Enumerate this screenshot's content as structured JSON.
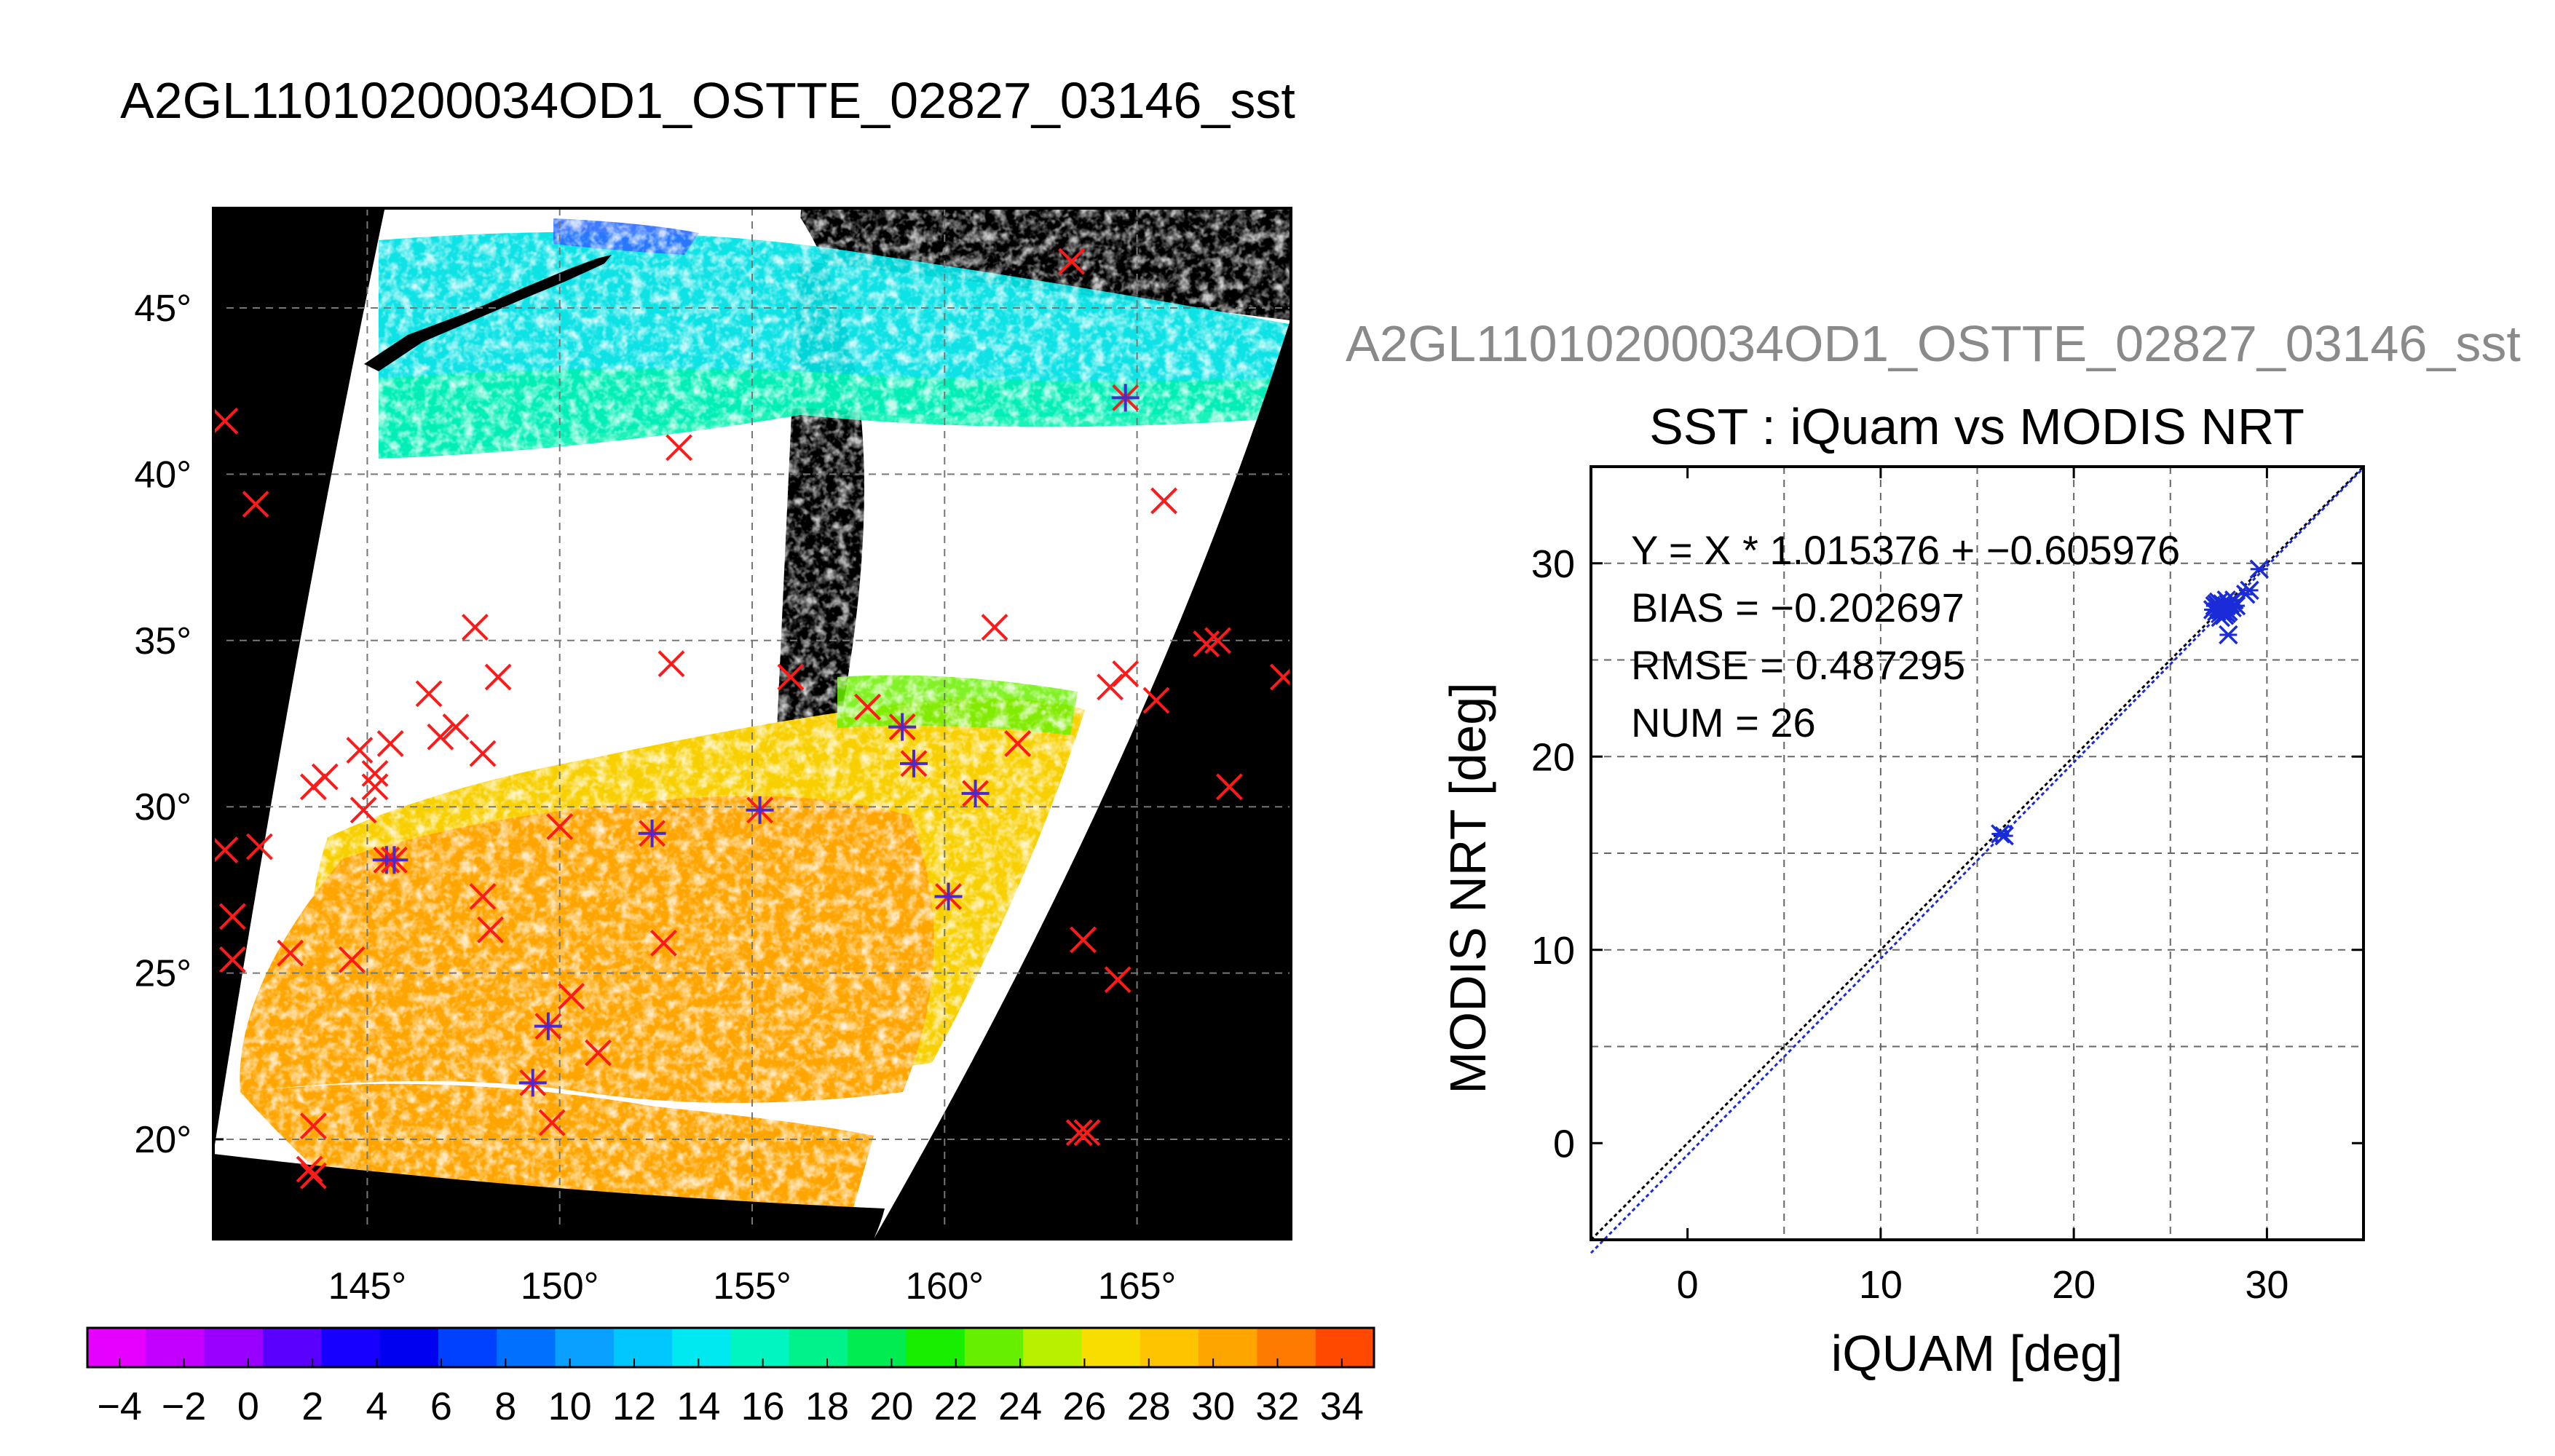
{
  "page": {
    "title": "A2GL11010200034OD1_OSTTE_02827_03146_sst",
    "subtitle": "A2GL11010200034OD1_OSTTE_02827_03146_sst"
  },
  "chart_data": [
    {
      "type": "map",
      "lon_range": [
        141,
        169
      ],
      "lat_range": [
        17,
        48
      ],
      "x_ticks": [
        145,
        150,
        155,
        160,
        165
      ],
      "x_tick_labels": [
        "145°",
        "150°",
        "155°",
        "160°",
        "165°"
      ],
      "y_ticks": [
        20,
        25,
        30,
        35,
        40,
        45
      ],
      "y_tick_labels": [
        "20°",
        "25°",
        "30°",
        "35°",
        "40°",
        "45°"
      ],
      "grid": true,
      "background_color": "#000000",
      "colorbar": {
        "range": [
          -5,
          35
        ],
        "step": 2,
        "tick_labels": [
          "−4",
          "−2",
          "0",
          "2",
          "4",
          "6",
          "8",
          "10",
          "12",
          "14",
          "16",
          "18",
          "20",
          "22",
          "24",
          "26",
          "28",
          "30",
          "32",
          "34"
        ],
        "colors": [
          "#e600ff",
          "#c300ff",
          "#9a00ff",
          "#5a00ff",
          "#1700ff",
          "#0000f0",
          "#0040ff",
          "#0070ff",
          "#0aa0ff",
          "#00c8ff",
          "#00e8f0",
          "#00f5c0",
          "#00f28a",
          "#00ec50",
          "#18ef00",
          "#66f000",
          "#b8f000",
          "#f8dd00",
          "#ffc400",
          "#ffa500",
          "#ff7a00",
          "#ff4800"
        ]
      },
      "markers": {
        "iquam_only": [
          [
            141.3,
            41.6
          ],
          [
            142.1,
            39.1
          ],
          [
            146.6,
            33.4
          ],
          [
            147.3,
            32.4
          ],
          [
            146.9,
            32.1
          ],
          [
            148.0,
            31.6
          ],
          [
            145.6,
            31.9
          ],
          [
            144.8,
            31.7
          ],
          [
            145.2,
            31.0
          ],
          [
            143.9,
            30.9
          ],
          [
            143.6,
            30.6
          ],
          [
            145.2,
            30.6
          ],
          [
            144.9,
            29.9
          ],
          [
            142.2,
            28.8
          ],
          [
            141.3,
            28.7
          ],
          [
            141.5,
            26.7
          ],
          [
            141.5,
            25.4
          ],
          [
            143.0,
            25.6
          ],
          [
            144.6,
            25.4
          ],
          [
            148.0,
            27.3
          ],
          [
            148.2,
            26.3
          ],
          [
            147.8,
            35.4
          ],
          [
            148.4,
            33.9
          ],
          [
            150.0,
            29.4
          ],
          [
            150.3,
            24.3
          ],
          [
            151.0,
            22.6
          ],
          [
            149.8,
            20.5
          ],
          [
            143.6,
            20.4
          ],
          [
            143.5,
            19.1
          ],
          [
            143.6,
            18.9
          ],
          [
            152.7,
            25.9
          ],
          [
            152.9,
            34.3
          ],
          [
            153.1,
            40.8
          ],
          [
            156.0,
            33.9
          ],
          [
            158.0,
            33.0
          ],
          [
            161.3,
            35.4
          ],
          [
            161.9,
            31.9
          ],
          [
            165.7,
            39.2
          ],
          [
            163.3,
            46.4
          ],
          [
            164.3,
            33.6
          ],
          [
            164.7,
            34.0
          ],
          [
            165.5,
            33.2
          ],
          [
            166.8,
            34.9
          ],
          [
            167.1,
            35.0
          ],
          [
            167.4,
            30.6
          ],
          [
            168.8,
            33.9
          ],
          [
            163.6,
            26.0
          ],
          [
            164.5,
            24.8
          ],
          [
            163.5,
            20.2
          ],
          [
            163.7,
            20.2
          ]
        ],
        "matched": [
          [
            164.7,
            42.3
          ],
          [
            158.9,
            32.4
          ],
          [
            159.2,
            31.3
          ],
          [
            160.8,
            30.4
          ],
          [
            155.2,
            29.9
          ],
          [
            152.4,
            29.2
          ],
          [
            145.5,
            28.4
          ],
          [
            145.7,
            28.4
          ],
          [
            160.1,
            27.3
          ],
          [
            149.7,
            23.4
          ],
          [
            149.3,
            21.7
          ]
        ]
      }
    },
    {
      "type": "scatter",
      "title": "SST : iQuam vs MODIS NRT",
      "xlabel": "iQUAM [deg]",
      "ylabel": "MODIS NRT [deg]",
      "xlim": [
        -5,
        35
      ],
      "ylim": [
        -5,
        35
      ],
      "x_ticks": [
        0,
        10,
        20,
        30
      ],
      "x_tick_labels": [
        "0",
        "10",
        "20",
        "30"
      ],
      "y_ticks": [
        0,
        10,
        20,
        30
      ],
      "y_tick_labels": [
        "0",
        "10",
        "20",
        "30"
      ],
      "grid": true,
      "stats": [
        "Y = X * 1.015376 + −0.605976",
        "BIAS = −0.202697",
        "RMSE = 0.487295",
        "NUM = 26"
      ],
      "fit": {
        "slope": 1.015376,
        "intercept": -0.605976
      },
      "points": [
        [
          16.2,
          16.0
        ],
        [
          16.4,
          15.9
        ],
        [
          27.3,
          27.8
        ],
        [
          27.4,
          27.5
        ],
        [
          27.5,
          28.0
        ],
        [
          27.6,
          27.6
        ],
        [
          27.7,
          27.9
        ],
        [
          27.8,
          27.3
        ],
        [
          27.9,
          27.8
        ],
        [
          28.0,
          27.5
        ],
        [
          28.0,
          26.3
        ],
        [
          28.2,
          27.7
        ],
        [
          28.3,
          28.1
        ],
        [
          27.4,
          27.9
        ],
        [
          27.6,
          27.2
        ],
        [
          27.9,
          28.1
        ],
        [
          28.1,
          27.9
        ],
        [
          27.5,
          27.7
        ],
        [
          27.7,
          27.5
        ],
        [
          28.0,
          27.9
        ],
        [
          27.2,
          27.6
        ],
        [
          28.4,
          27.8
        ],
        [
          27.9,
          27.4
        ],
        [
          28.9,
          28.4
        ],
        [
          29.1,
          28.6
        ],
        [
          29.6,
          29.7
        ]
      ]
    }
  ]
}
